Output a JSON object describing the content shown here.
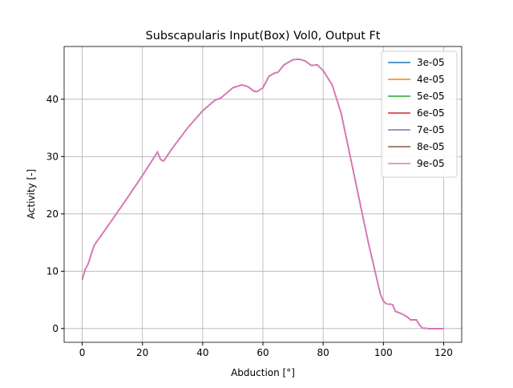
{
  "chart_data": {
    "type": "line",
    "title": "Subscapularis Input(Box) Vol0, Output Ft",
    "x_label": "Abduction [°]",
    "y_label": "Activity [-]",
    "x": [
      0,
      1,
      2,
      3,
      4,
      5,
      6,
      8,
      10,
      15,
      20,
      25,
      26,
      27,
      30,
      35,
      40,
      44,
      46,
      50,
      53,
      55,
      57,
      58,
      60,
      62,
      64,
      65,
      67,
      70,
      72,
      74,
      76,
      78,
      80,
      83,
      86,
      89,
      92,
      95,
      97,
      99,
      100,
      101,
      103,
      104,
      106,
      108,
      109,
      111,
      112,
      113,
      115,
      120
    ],
    "series": [
      {
        "name": "3e-05",
        "color": "#1f77b4",
        "values": [
          8.5,
          10.3,
          11.3,
          13,
          14.5,
          15.3,
          16,
          17.5,
          19,
          22.8,
          26.7,
          30.8,
          29.5,
          29.2,
          31.5,
          35,
          38,
          39.8,
          40.2,
          42,
          42.5,
          42.2,
          41.4,
          41.3,
          42,
          44,
          44.6,
          44.7,
          46,
          46.9,
          47,
          46.7,
          45.9,
          46,
          45,
          42.5,
          37.5,
          30,
          22.5,
          15,
          10.5,
          6,
          4.8,
          4.3,
          4.2,
          3,
          2.6,
          2,
          1.5,
          1.5,
          0.6,
          0.1,
          0,
          0
        ]
      },
      {
        "name": "4e-05",
        "color": "#ff7f0e",
        "values": [
          8.5,
          10.3,
          11.3,
          13,
          14.5,
          15.3,
          16,
          17.5,
          19,
          22.8,
          26.7,
          30.8,
          29.5,
          29.2,
          31.5,
          35,
          38,
          39.8,
          40.2,
          42,
          42.5,
          42.2,
          41.4,
          41.3,
          42,
          44,
          44.6,
          44.7,
          46,
          46.9,
          47,
          46.7,
          45.9,
          46,
          45,
          42.5,
          37.5,
          30,
          22.5,
          15,
          10.5,
          6,
          4.8,
          4.3,
          4.2,
          3,
          2.6,
          2,
          1.5,
          1.5,
          0.6,
          0.1,
          0,
          0
        ]
      },
      {
        "name": "5e-05",
        "color": "#2ca02c",
        "values": [
          8.5,
          10.3,
          11.3,
          13,
          14.5,
          15.3,
          16,
          17.5,
          19,
          22.8,
          26.7,
          30.8,
          29.5,
          29.2,
          31.5,
          35,
          38,
          39.8,
          40.2,
          42,
          42.5,
          42.2,
          41.4,
          41.3,
          42,
          44,
          44.6,
          44.7,
          46,
          46.9,
          47,
          46.7,
          45.9,
          46,
          45,
          42.5,
          37.5,
          30,
          22.5,
          15,
          10.5,
          6,
          4.8,
          4.3,
          4.2,
          3,
          2.6,
          2,
          1.5,
          1.5,
          0.6,
          0.1,
          0,
          0
        ]
      },
      {
        "name": "6e-05",
        "color": "#d62728",
        "values": [
          8.5,
          10.3,
          11.3,
          13,
          14.5,
          15.3,
          16,
          17.5,
          19,
          22.8,
          26.7,
          30.8,
          29.5,
          29.2,
          31.5,
          35,
          38,
          39.8,
          40.2,
          42,
          42.5,
          42.2,
          41.4,
          41.3,
          42,
          44,
          44.6,
          44.7,
          46,
          46.9,
          47,
          46.7,
          45.9,
          46,
          45,
          42.5,
          37.5,
          30,
          22.5,
          15,
          10.5,
          6,
          4.8,
          4.3,
          4.2,
          3,
          2.6,
          2,
          1.5,
          1.5,
          0.6,
          0.1,
          0,
          0
        ]
      },
      {
        "name": "7e-05",
        "color": "#9467bd",
        "values": [
          8.5,
          10.3,
          11.3,
          13,
          14.5,
          15.3,
          16,
          17.5,
          19,
          22.8,
          26.7,
          30.8,
          29.5,
          29.2,
          31.5,
          35,
          38,
          39.8,
          40.2,
          42,
          42.5,
          42.2,
          41.4,
          41.3,
          42,
          44,
          44.6,
          44.7,
          46,
          46.9,
          47,
          46.7,
          45.9,
          46,
          45,
          42.5,
          37.5,
          30,
          22.5,
          15,
          10.5,
          6,
          4.8,
          4.3,
          4.2,
          3,
          2.6,
          2,
          1.5,
          1.5,
          0.6,
          0.1,
          0,
          0
        ]
      },
      {
        "name": "8e-05",
        "color": "#8c564b",
        "values": [
          8.5,
          10.3,
          11.3,
          13,
          14.5,
          15.3,
          16,
          17.5,
          19,
          22.8,
          26.7,
          30.8,
          29.5,
          29.2,
          31.5,
          35,
          38,
          39.8,
          40.2,
          42,
          42.5,
          42.2,
          41.4,
          41.3,
          42,
          44,
          44.6,
          44.7,
          46,
          46.9,
          47,
          46.7,
          45.9,
          46,
          45,
          42.5,
          37.5,
          30,
          22.5,
          15,
          10.5,
          6,
          4.8,
          4.3,
          4.2,
          3,
          2.6,
          2,
          1.5,
          1.5,
          0.6,
          0.1,
          0,
          0
        ]
      },
      {
        "name": "9e-05",
        "color": "#e377c2",
        "values": [
          8.5,
          10.3,
          11.3,
          13,
          14.5,
          15.3,
          16,
          17.5,
          19,
          22.8,
          26.7,
          30.8,
          29.5,
          29.2,
          31.5,
          35,
          38,
          39.8,
          40.2,
          42,
          42.5,
          42.2,
          41.4,
          41.3,
          42,
          44,
          44.6,
          44.7,
          46,
          46.9,
          47,
          46.7,
          45.9,
          46,
          45,
          42.5,
          37.5,
          30,
          22.5,
          15,
          10.5,
          6,
          4.8,
          4.3,
          4.2,
          3,
          2.6,
          2,
          1.5,
          1.5,
          0.6,
          0.1,
          0,
          0
        ]
      }
    ],
    "xlim": [
      -6,
      126
    ],
    "ylim": [
      -2.4,
      49.2
    ],
    "xticks": [
      0,
      20,
      40,
      60,
      80,
      100,
      120
    ],
    "yticks": [
      0,
      10,
      20,
      30,
      40
    ],
    "grid": true,
    "legend": "upper-right"
  }
}
